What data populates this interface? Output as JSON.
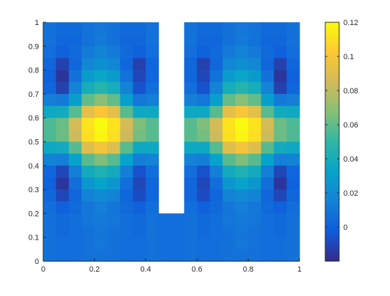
{
  "chart_data": {
    "type": "heatmap",
    "title": "",
    "xlabel": "",
    "ylabel": "",
    "xlim": [
      0,
      1
    ],
    "ylim": [
      0,
      1
    ],
    "x_ticks": [
      "0",
      "0.2",
      "0.4",
      "0.6",
      "0.8",
      "1"
    ],
    "y_ticks": [
      "0",
      "0.1",
      "0.2",
      "0.3",
      "0.4",
      "0.5",
      "0.6",
      "0.7",
      "0.8",
      "0.9",
      "1"
    ],
    "x_centers": [
      0.025,
      0.075,
      0.125,
      0.175,
      0.225,
      0.275,
      0.325,
      0.375,
      0.425,
      0.475,
      0.525,
      0.575,
      0.625,
      0.675,
      0.725,
      0.775,
      0.825,
      0.875,
      0.925,
      0.975
    ],
    "y_centers": [
      0.975,
      0.925,
      0.875,
      0.825,
      0.775,
      0.725,
      0.675,
      0.625,
      0.575,
      0.525,
      0.475,
      0.425,
      0.375,
      0.325,
      0.275,
      0.225,
      0.175,
      0.125,
      0.075,
      0.025
    ],
    "values": [
      [
        0.008,
        0.004,
        0.004,
        0.008,
        0.01,
        0.008,
        0.004,
        0.004,
        0.008,
        null,
        null,
        0.008,
        0.004,
        0.004,
        0.008,
        0.01,
        0.008,
        0.004,
        0.004,
        0.008
      ],
      [
        0.008,
        0.002,
        0.002,
        0.008,
        0.012,
        0.008,
        0.002,
        0.002,
        0.008,
        null,
        null,
        0.008,
        0.002,
        0.002,
        0.008,
        0.012,
        0.008,
        0.002,
        0.002,
        0.008
      ],
      [
        0.006,
        0.0,
        0.004,
        0.012,
        0.016,
        0.012,
        0.004,
        0.0,
        0.006,
        null,
        null,
        0.006,
        0.0,
        0.004,
        0.012,
        0.016,
        0.012,
        0.004,
        0.0,
        0.006
      ],
      [
        0.002,
        -0.012,
        0.002,
        0.018,
        0.022,
        0.018,
        0.002,
        -0.012,
        0.002,
        null,
        null,
        0.002,
        -0.012,
        0.002,
        0.018,
        0.022,
        0.018,
        0.002,
        -0.012,
        0.002
      ],
      [
        0.0,
        -0.016,
        0.008,
        0.028,
        0.034,
        0.028,
        0.008,
        -0.01,
        0.002,
        null,
        null,
        0.002,
        -0.01,
        0.008,
        0.028,
        0.034,
        0.028,
        0.008,
        -0.016,
        0.0
      ],
      [
        0.002,
        -0.012,
        0.016,
        0.04,
        0.046,
        0.04,
        0.016,
        -0.006,
        0.006,
        null,
        null,
        0.006,
        -0.006,
        0.016,
        0.04,
        0.046,
        0.04,
        0.016,
        -0.012,
        0.002
      ],
      [
        0.014,
        0.012,
        0.03,
        0.06,
        0.068,
        0.06,
        0.03,
        0.01,
        0.014,
        null,
        null,
        0.014,
        0.01,
        0.03,
        0.06,
        0.068,
        0.06,
        0.03,
        0.012,
        0.014
      ],
      [
        0.036,
        0.038,
        0.058,
        0.092,
        0.1,
        0.092,
        0.058,
        0.036,
        0.036,
        null,
        null,
        0.036,
        0.036,
        0.058,
        0.092,
        0.1,
        0.092,
        0.058,
        0.038,
        0.036
      ],
      [
        0.056,
        0.062,
        0.086,
        0.112,
        0.12,
        0.112,
        0.086,
        0.066,
        0.058,
        null,
        null,
        0.058,
        0.066,
        0.086,
        0.112,
        0.12,
        0.112,
        0.086,
        0.062,
        0.056
      ],
      [
        0.056,
        0.062,
        0.084,
        0.11,
        0.118,
        0.11,
        0.084,
        0.064,
        0.058,
        null,
        null,
        0.058,
        0.064,
        0.084,
        0.11,
        0.118,
        0.11,
        0.084,
        0.062,
        0.056
      ],
      [
        0.036,
        0.038,
        0.058,
        0.09,
        0.098,
        0.09,
        0.058,
        0.036,
        0.036,
        null,
        null,
        0.036,
        0.036,
        0.058,
        0.09,
        0.098,
        0.09,
        0.058,
        0.038,
        0.036
      ],
      [
        0.016,
        0.014,
        0.032,
        0.058,
        0.066,
        0.058,
        0.032,
        0.014,
        0.016,
        null,
        null,
        0.016,
        0.014,
        0.032,
        0.058,
        0.066,
        0.058,
        0.032,
        0.014,
        0.016
      ],
      [
        0.002,
        -0.01,
        0.014,
        0.038,
        0.044,
        0.038,
        0.014,
        -0.006,
        0.006,
        null,
        null,
        0.006,
        -0.006,
        0.014,
        0.038,
        0.044,
        0.038,
        0.014,
        -0.01,
        0.002
      ],
      [
        0.0,
        -0.016,
        0.006,
        0.026,
        0.032,
        0.026,
        0.006,
        -0.01,
        0.002,
        null,
        null,
        0.002,
        -0.01,
        0.006,
        0.026,
        0.032,
        0.026,
        0.006,
        -0.016,
        0.0
      ],
      [
        0.002,
        -0.01,
        0.002,
        0.016,
        0.02,
        0.016,
        0.002,
        -0.008,
        0.002,
        null,
        null,
        0.002,
        -0.008,
        0.002,
        0.016,
        0.02,
        0.016,
        0.002,
        -0.01,
        0.002
      ],
      [
        0.006,
        0.0,
        0.004,
        0.01,
        0.014,
        0.01,
        0.004,
        0.0,
        0.006,
        null,
        null,
        0.006,
        0.0,
        0.004,
        0.01,
        0.014,
        0.01,
        0.004,
        0.0,
        0.006
      ],
      [
        0.008,
        0.004,
        0.006,
        0.01,
        0.012,
        0.01,
        0.006,
        0.004,
        0.008,
        0.006,
        0.006,
        0.008,
        0.004,
        0.006,
        0.01,
        0.012,
        0.01,
        0.006,
        0.004,
        0.008
      ],
      [
        0.008,
        0.004,
        0.006,
        0.008,
        0.01,
        0.008,
        0.006,
        0.004,
        0.008,
        0.006,
        0.006,
        0.008,
        0.004,
        0.006,
        0.008,
        0.01,
        0.008,
        0.006,
        0.004,
        0.008
      ],
      [
        0.008,
        0.006,
        0.006,
        0.008,
        0.01,
        0.008,
        0.006,
        0.006,
        0.008,
        0.006,
        0.006,
        0.008,
        0.006,
        0.006,
        0.008,
        0.01,
        0.008,
        0.006,
        0.006,
        0.008
      ],
      [
        0.008,
        0.006,
        0.006,
        0.008,
        0.008,
        0.008,
        0.006,
        0.006,
        0.008,
        0.006,
        0.006,
        0.008,
        0.006,
        0.006,
        0.008,
        0.008,
        0.008,
        0.006,
        0.006,
        0.008
      ]
    ],
    "color_range": [
      -0.02,
      0.12
    ],
    "colorbar_ticks": [
      "0",
      "0.02",
      "0.04",
      "0.06",
      "0.08",
      "0.1",
      "0.12"
    ],
    "colormap": "parula",
    "colormap_stops": [
      "#352a87",
      "#0f5cdd",
      "#1481d6",
      "#06a4ca",
      "#2eb7a4",
      "#87bf77",
      "#d1bb59",
      "#fec832",
      "#f9fb0e"
    ],
    "grid": false,
    "legend": "colorbar-right"
  }
}
